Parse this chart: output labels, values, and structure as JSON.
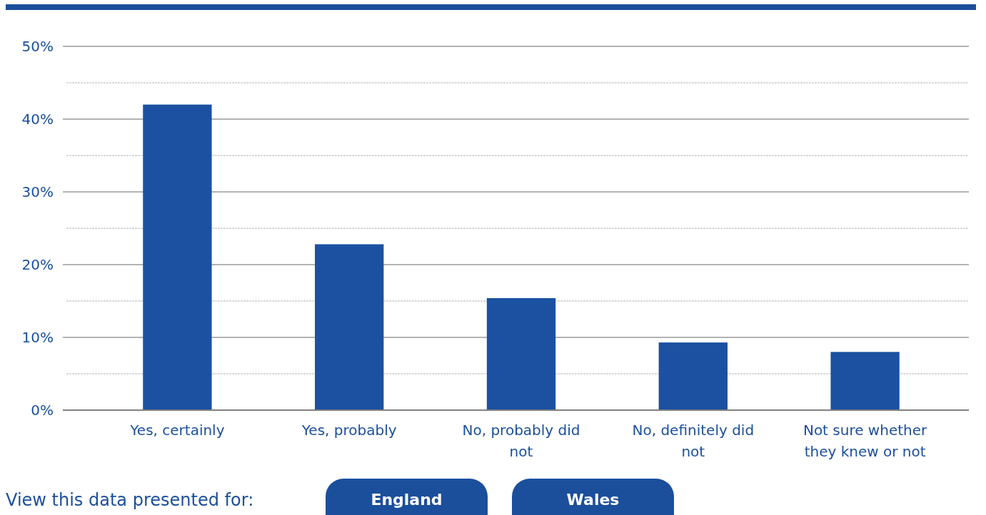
{
  "chart_data": {
    "type": "bar",
    "categories": [
      "Yes, certainly",
      "Yes, probably",
      "No, probably did not",
      "No, definitely did not",
      "Not sure whether they knew or not"
    ],
    "values": [
      42,
      22.8,
      15.4,
      9.3,
      8.0
    ],
    "color": "#1b51a0",
    "ylim": [
      0,
      50
    ],
    "yticks": [
      {
        "value": 0,
        "label": "0%"
      },
      {
        "value": 5,
        "label": null
      },
      {
        "value": 10,
        "label": "10%"
      },
      {
        "value": 15,
        "label": null
      },
      {
        "value": 20,
        "label": "20%"
      },
      {
        "value": 25,
        "label": null
      },
      {
        "value": 30,
        "label": "30%"
      },
      {
        "value": 35,
        "label": null
      },
      {
        "value": 40,
        "label": "40%"
      },
      {
        "value": 45,
        "label": null
      },
      {
        "value": 50,
        "label": "50%"
      }
    ],
    "grid": true,
    "annotations": [
      "View this data presented for:",
      "England",
      "Wales"
    ]
  }
}
